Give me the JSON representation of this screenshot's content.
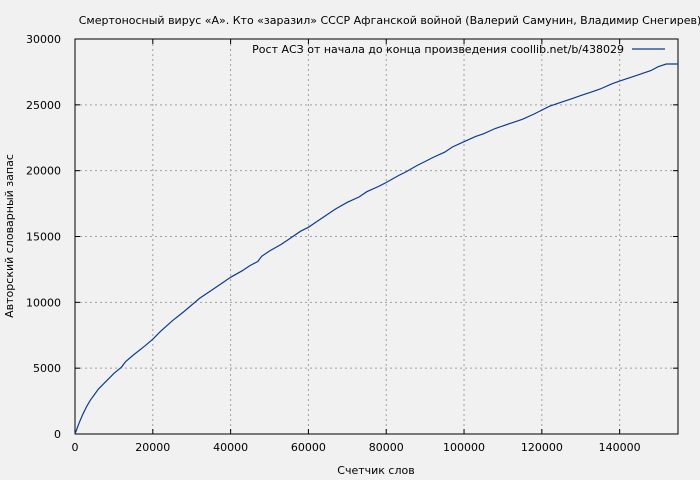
{
  "chart_data": {
    "type": "line",
    "title": "Смертоносный вирус «А». Кто «заразил» СССР Афганской войной (Валерий Самунин, Владимир Снегирев)",
    "xlabel": "Счетчик слов",
    "ylabel": "Авторский словарный запас",
    "xlim": [
      0,
      155000
    ],
    "ylim": [
      0,
      30000
    ],
    "x_ticks": [
      0,
      20000,
      40000,
      60000,
      80000,
      100000,
      120000,
      140000
    ],
    "y_ticks": [
      0,
      5000,
      10000,
      15000,
      20000,
      25000,
      30000
    ],
    "grid": true,
    "legend_position": "top-right",
    "series": [
      {
        "name": "Рост АСЗ от начала до конца произведения coollib.net/b/438029",
        "color": "#0b3d91",
        "x": [
          0,
          1000,
          2000,
          3000,
          4000,
          5000,
          6000,
          8000,
          10000,
          12000,
          13000,
          15000,
          18000,
          20000,
          22000,
          25000,
          28000,
          30000,
          32000,
          35000,
          38000,
          40000,
          43000,
          45000,
          47000,
          48000,
          50000,
          53000,
          55000,
          58000,
          60000,
          62000,
          65000,
          67000,
          70000,
          73000,
          75000,
          78000,
          80000,
          83000,
          85000,
          88000,
          90000,
          92000,
          95000,
          97000,
          100000,
          103000,
          105000,
          108000,
          110000,
          113000,
          115000,
          118000,
          120000,
          122000,
          125000,
          128000,
          130000,
          133000,
          135000,
          138000,
          140000,
          143000,
          145000,
          148000,
          150000,
          152000,
          155000
        ],
        "y": [
          0,
          800,
          1500,
          2100,
          2600,
          3000,
          3400,
          4000,
          4600,
          5100,
          5500,
          6000,
          6700,
          7200,
          7800,
          8600,
          9300,
          9800,
          10300,
          10900,
          11500,
          11900,
          12400,
          12800,
          13100,
          13500,
          13900,
          14400,
          14800,
          15400,
          15700,
          16100,
          16700,
          17100,
          17600,
          18000,
          18400,
          18800,
          19100,
          19600,
          19900,
          20400,
          20700,
          21000,
          21400,
          21800,
          22200,
          22600,
          22800,
          23200,
          23400,
          23700,
          23900,
          24300,
          24600,
          24900,
          25200,
          25500,
          25700,
          26000,
          26200,
          26600,
          26800,
          27100,
          27300,
          27600,
          27900,
          28100,
          28100
        ]
      }
    ]
  }
}
